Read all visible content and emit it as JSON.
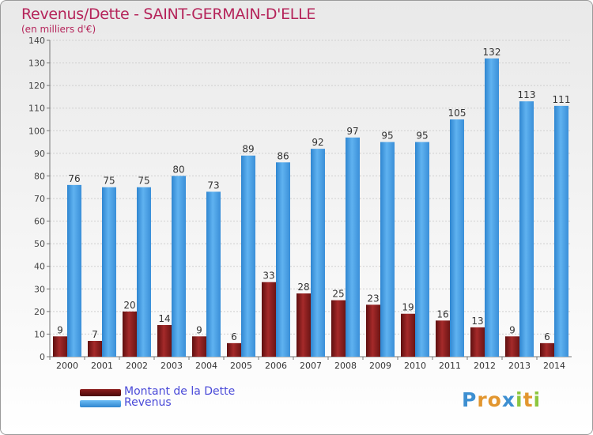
{
  "chart_data": {
    "type": "bar",
    "title": "Revenus/Dette - SAINT-GERMAIN-D'ELLE",
    "subtitle": "(en milliers d'€)",
    "categories": [
      "2000",
      "2001",
      "2002",
      "2003",
      "2004",
      "2005",
      "2006",
      "2007",
      "2008",
      "2009",
      "2010",
      "2011",
      "2012",
      "2013",
      "2014"
    ],
    "series": [
      {
        "name": "Montant de la Dette",
        "color": "#8b1c1c",
        "values": [
          9,
          7,
          20,
          14,
          9,
          6,
          33,
          28,
          25,
          23,
          19,
          16,
          13,
          9,
          6
        ]
      },
      {
        "name": "Revenus",
        "color": "#4aa3e8",
        "values": [
          76,
          75,
          75,
          80,
          73,
          89,
          86,
          92,
          97,
          95,
          95,
          105,
          132,
          113,
          111
        ]
      }
    ],
    "ylim": [
      0,
      140
    ],
    "yticks": [
      0,
      10,
      20,
      30,
      40,
      50,
      60,
      70,
      80,
      90,
      100,
      110,
      120,
      130,
      140
    ],
    "grid": true,
    "legend_position": "bottom-left"
  },
  "logo": {
    "letters": [
      {
        "ch": "P",
        "color": "#3d8fd1"
      },
      {
        "ch": "r",
        "color": "#e2962f"
      },
      {
        "ch": "o",
        "color": "#e2962f"
      },
      {
        "ch": "x",
        "color": "#3d8fd1"
      },
      {
        "ch": "i",
        "color": "#8cc63f"
      },
      {
        "ch": "t",
        "color": "#e2962f"
      },
      {
        "ch": "i",
        "color": "#8cc63f"
      }
    ]
  }
}
